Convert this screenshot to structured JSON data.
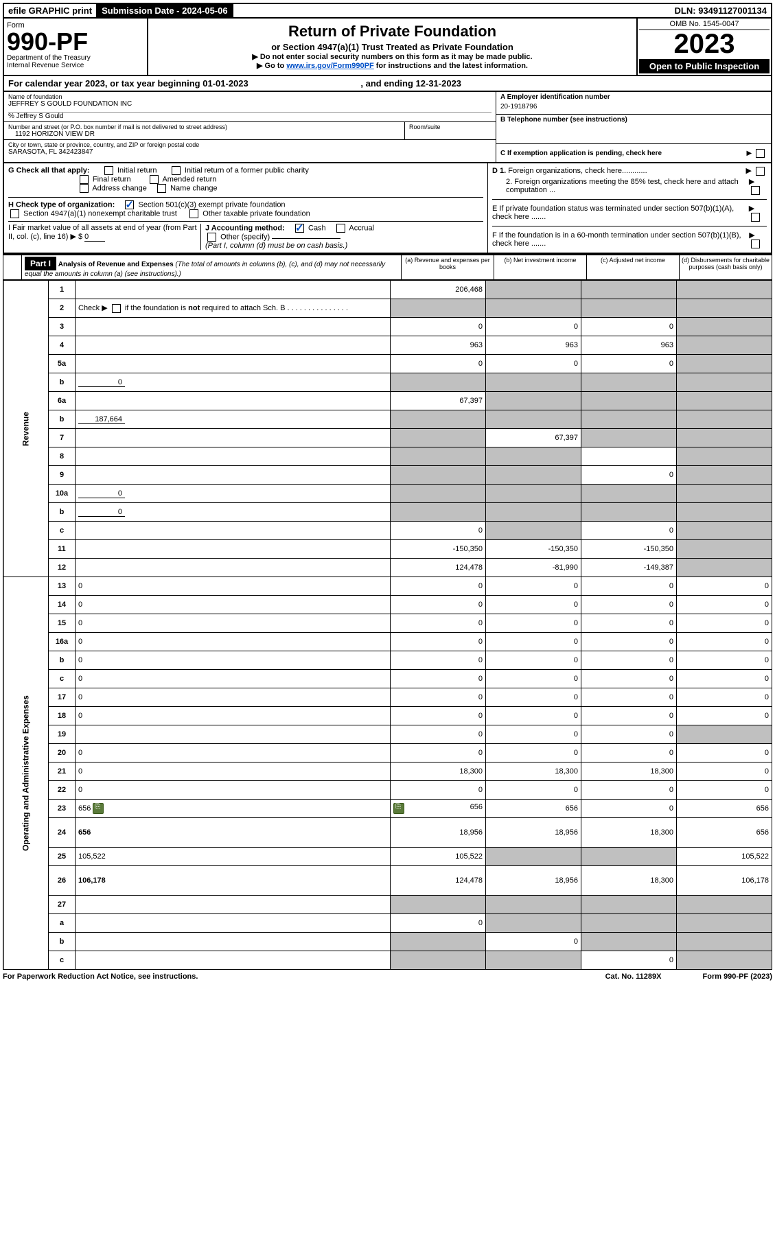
{
  "topbar": {
    "efile": "efile GRAPHIC print",
    "submission_label": "Submission Date - 2024-05-06",
    "dln": "DLN: 93491127001134"
  },
  "header": {
    "form_word": "Form",
    "form_no": "990-PF",
    "dept1": "Department of the Treasury",
    "dept2": "Internal Revenue Service",
    "title": "Return of Private Foundation",
    "subtitle": "or Section 4947(a)(1) Trust Treated as Private Foundation",
    "instr1": "▶ Do not enter social security numbers on this form as it may be made public.",
    "instr2_pre": "▶ Go to ",
    "instr2_link": "www.irs.gov/Form990PF",
    "instr2_post": " for instructions and the latest information.",
    "omb": "OMB No. 1545-0047",
    "year": "2023",
    "open": "Open to Public Inspection"
  },
  "calendar": {
    "text_pre": "For calendar year 2023, or tax year beginning ",
    "begin": "01-01-2023",
    "mid": ", and ending ",
    "end": "12-31-2023"
  },
  "info": {
    "name_lbl": "Name of foundation",
    "name": "JEFFREY S GOULD FOUNDATION INC",
    "care_of": "% Jeffrey S Gould",
    "addr_lbl": "Number and street (or P.O. box number if mail is not delivered to street address)",
    "addr": "1192 HORIZON VIEW DR",
    "room_lbl": "Room/suite",
    "city_lbl": "City or town, state or province, country, and ZIP or foreign postal code",
    "city": "SARASOTA, FL 342423847",
    "ein_lbl": "A Employer identification number",
    "ein": "20-1918796",
    "tel_lbl": "B Telephone number (see instructions)",
    "c_lbl": "C If exemption application is pending, check here",
    "d1": "D 1. Foreign organizations, check here............",
    "d2": "2. Foreign organizations meeting the 85% test, check here and attach computation ...",
    "e": "E If private foundation status was terminated under section 507(b)(1)(A), check here .......",
    "f": "F If the foundation is in a 60-month termination under section 507(b)(1)(B), check here .......",
    "g_lbl": "G Check all that apply:",
    "g_initial": "Initial return",
    "g_initial_former": "Initial return of a former public charity",
    "g_final": "Final return",
    "g_amended": "Amended return",
    "g_address": "Address change",
    "g_name": "Name change",
    "h_lbl": "H Check type of organization:",
    "h_501": "Section 501(c)(3) exempt private foundation",
    "h_4947": "Section 4947(a)(1) nonexempt charitable trust",
    "h_other": "Other taxable private foundation",
    "i_lbl": "I Fair market value of all assets at end of year (from Part II, col. (c), line 16) ▶ $",
    "i_val": "0",
    "j_lbl": "J Accounting method:",
    "j_cash": "Cash",
    "j_accrual": "Accrual",
    "j_other": "Other (specify)",
    "j_note": "(Part I, column (d) must be on cash basis.)"
  },
  "part1": {
    "label": "Part I",
    "title": "Analysis of Revenue and Expenses",
    "title_note": "(The total of amounts in columns (b), (c), and (d) may not necessarily equal the amounts in column (a) (see instructions).)",
    "col_a": "(a) Revenue and expenses per books",
    "col_b": "(b) Net investment income",
    "col_c": "(c) Adjusted net income",
    "col_d": "(d) Disbursements for charitable purposes (cash basis only)"
  },
  "side_labels": {
    "revenue": "Revenue",
    "expenses": "Operating and Administrative Expenses"
  },
  "rows": [
    {
      "n": "1",
      "d": "",
      "a": "206,468",
      "b": "",
      "c": "",
      "bg": true,
      "cg": true,
      "dg": true
    },
    {
      "n": "2",
      "d": "",
      "a": "",
      "b": "",
      "c": "",
      "ag": true,
      "bg": true,
      "cg": true,
      "dg": true,
      "html": true,
      "desc_html": "Check ▶ <span class='chk'></span> if the foundation is <b>not</b> required to attach Sch. B  .  .  .  .  .  .  .  .  .  .  .  .  .  .  ."
    },
    {
      "n": "3",
      "d": "",
      "a": "0",
      "b": "0",
      "c": "0",
      "dg": true
    },
    {
      "n": "4",
      "d": "",
      "a": "963",
      "b": "963",
      "c": "963",
      "dg": true
    },
    {
      "n": "5a",
      "d": "",
      "a": "0",
      "b": "0",
      "c": "0",
      "dg": true
    },
    {
      "n": "b",
      "d": "",
      "inline": "0",
      "a": "",
      "b": "",
      "c": "",
      "ag": true,
      "bg": true,
      "cg": true,
      "dg": true
    },
    {
      "n": "6a",
      "d": "",
      "a": "67,397",
      "b": "",
      "c": "",
      "bg": true,
      "cg": true,
      "dg": true
    },
    {
      "n": "b",
      "d": "",
      "inline": "187,664",
      "a": "",
      "b": "",
      "c": "",
      "ag": true,
      "bg": true,
      "cg": true,
      "dg": true
    },
    {
      "n": "7",
      "d": "",
      "a": "",
      "b": "67,397",
      "c": "",
      "ag": true,
      "cg": true,
      "dg": true
    },
    {
      "n": "8",
      "d": "",
      "a": "",
      "b": "",
      "c": "",
      "ag": true,
      "bg": true,
      "dg": true
    },
    {
      "n": "9",
      "d": "",
      "a": "",
      "b": "",
      "c": "0",
      "ag": true,
      "bg": true,
      "dg": true
    },
    {
      "n": "10a",
      "d": "",
      "inline": "0",
      "a": "",
      "b": "",
      "c": "",
      "ag": true,
      "bg": true,
      "cg": true,
      "dg": true
    },
    {
      "n": "b",
      "d": "",
      "inline": "0",
      "a": "",
      "b": "",
      "c": "",
      "ag": true,
      "bg": true,
      "cg": true,
      "dg": true
    },
    {
      "n": "c",
      "d": "",
      "a": "0",
      "b": "",
      "c": "0",
      "bg": true,
      "dg": true
    },
    {
      "n": "11",
      "d": "",
      "a": "-150,350",
      "b": "-150,350",
      "c": "-150,350",
      "dg": true
    },
    {
      "n": "12",
      "d": "",
      "bold": true,
      "a": "124,478",
      "b": "-81,990",
      "c": "-149,387",
      "dg": true
    },
    {
      "n": "13",
      "d": "0",
      "a": "0",
      "b": "0",
      "c": "0"
    },
    {
      "n": "14",
      "d": "0",
      "a": "0",
      "b": "0",
      "c": "0"
    },
    {
      "n": "15",
      "d": "0",
      "a": "0",
      "b": "0",
      "c": "0"
    },
    {
      "n": "16a",
      "d": "0",
      "a": "0",
      "b": "0",
      "c": "0"
    },
    {
      "n": "b",
      "d": "0",
      "a": "0",
      "b": "0",
      "c": "0"
    },
    {
      "n": "c",
      "d": "0",
      "a": "0",
      "b": "0",
      "c": "0"
    },
    {
      "n": "17",
      "d": "0",
      "a": "0",
      "b": "0",
      "c": "0"
    },
    {
      "n": "18",
      "d": "0",
      "a": "0",
      "b": "0",
      "c": "0"
    },
    {
      "n": "19",
      "d": "",
      "a": "0",
      "b": "0",
      "c": "0",
      "dg": true
    },
    {
      "n": "20",
      "d": "0",
      "a": "0",
      "b": "0",
      "c": "0"
    },
    {
      "n": "21",
      "d": "0",
      "a": "18,300",
      "b": "18,300",
      "c": "18,300"
    },
    {
      "n": "22",
      "d": "0",
      "a": "0",
      "b": "0",
      "c": "0"
    },
    {
      "n": "23",
      "d": "656",
      "a": "656",
      "b": "656",
      "c": "0",
      "attach": true
    },
    {
      "n": "24",
      "d": "656",
      "bold": true,
      "a": "18,956",
      "b": "18,956",
      "c": "18,300",
      "tall": true
    },
    {
      "n": "25",
      "d": "105,522",
      "a": "105,522",
      "b": "",
      "c": "",
      "bg": true,
      "cg": true
    },
    {
      "n": "26",
      "d": "106,178",
      "bold": true,
      "a": "124,478",
      "b": "18,956",
      "c": "18,300",
      "tall": true
    },
    {
      "n": "27",
      "d": "",
      "a": "",
      "b": "",
      "c": "",
      "ag": true,
      "bg": true,
      "cg": true,
      "dg": true
    },
    {
      "n": "a",
      "d": "",
      "bold": true,
      "a": "0",
      "b": "",
      "c": "",
      "bg": true,
      "cg": true,
      "dg": true
    },
    {
      "n": "b",
      "d": "",
      "bold": true,
      "a": "",
      "b": "0",
      "c": "",
      "ag": true,
      "cg": true,
      "dg": true
    },
    {
      "n": "c",
      "d": "",
      "bold": true,
      "a": "",
      "b": "",
      "c": "0",
      "ag": true,
      "bg": true,
      "dg": true
    }
  ],
  "footer": {
    "left": "For Paperwork Reduction Act Notice, see instructions.",
    "mid": "Cat. No. 11289X",
    "right": "Form 990-PF (2023)"
  }
}
